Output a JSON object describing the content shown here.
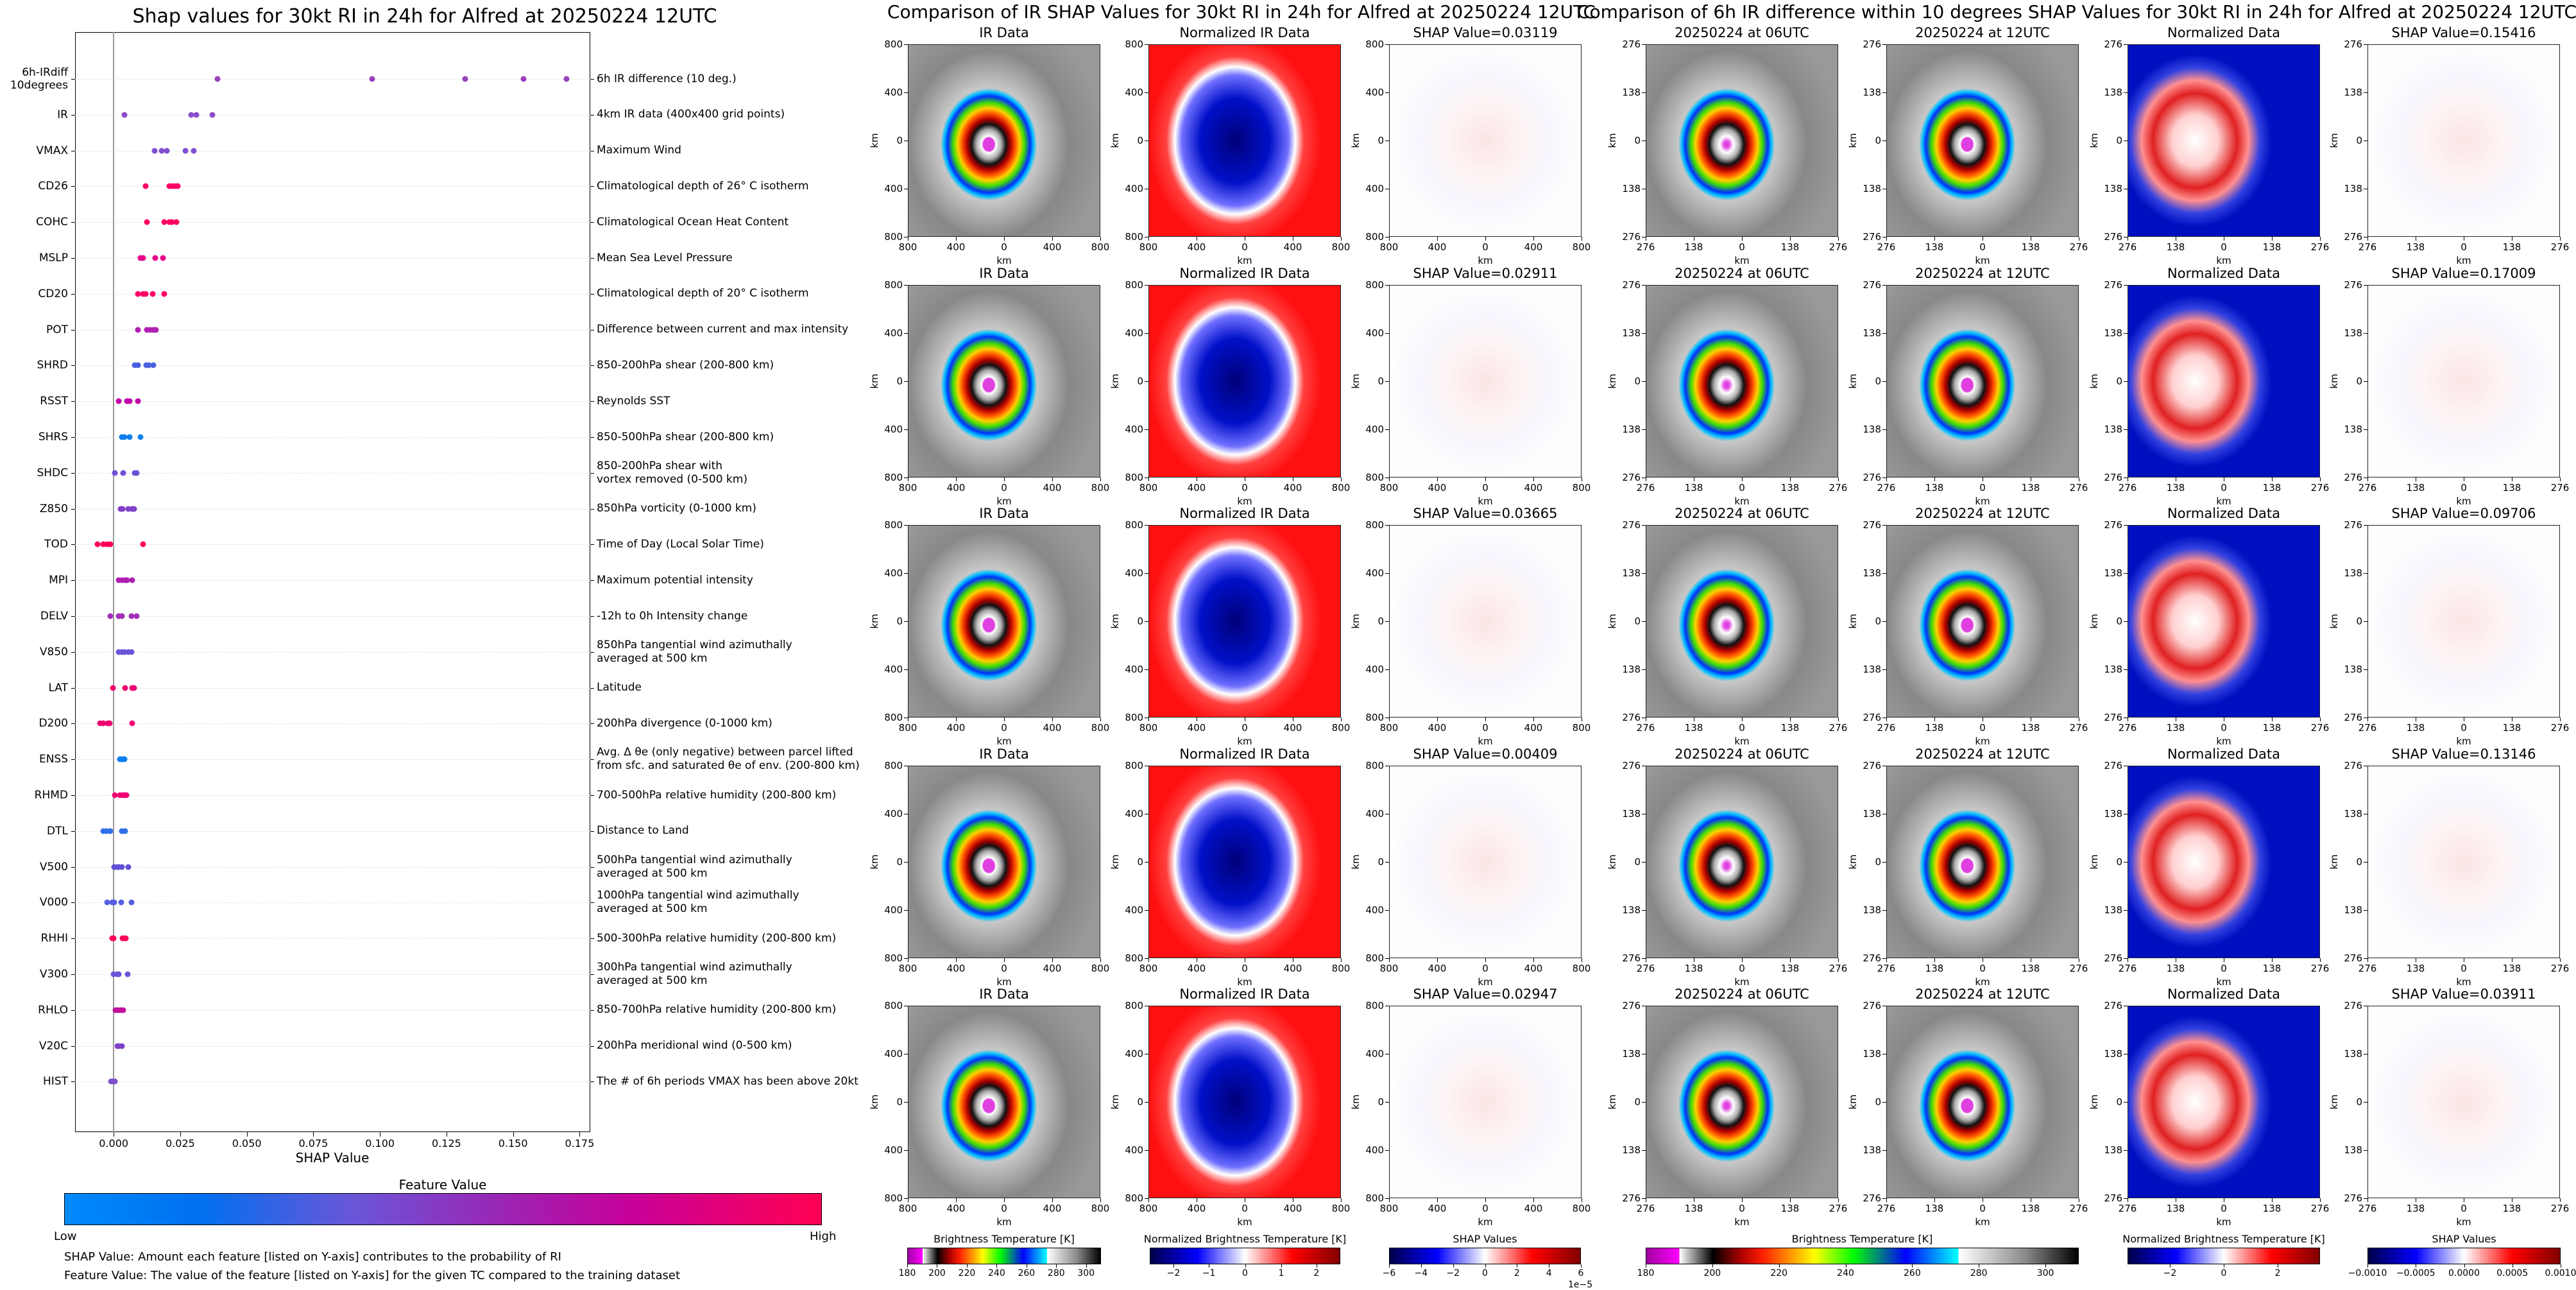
{
  "left_chart": {
    "title": "Shap values for 30kt RI in 24h for Alfred at 20250224 12UTC",
    "xlabel": "SHAP Value",
    "x_ticks": [
      "0.000",
      "0.025",
      "0.050",
      "0.075",
      "0.100",
      "0.125",
      "0.150",
      "0.175"
    ],
    "colorbar": {
      "title": "Feature Value",
      "low": "Low",
      "high": "High"
    },
    "note1": "SHAP Value: Amount each feature [listed on Y-axis] contributes to the probability of RI",
    "note2": "Feature Value: The value of the feature [listed on Y-axis] for the given TC compared to the training dataset"
  },
  "chart_data": {
    "type": "scatter",
    "title": "Shap values for 30kt RI in 24h for Alfred at 20250224 12UTC",
    "xlabel": "SHAP Value",
    "xlim": [
      -0.0145,
      0.179
    ],
    "zero_line": 0,
    "features": [
      {
        "code": "6h-IRdiff\n10degrees",
        "desc": "6h IR difference (10 deg.)",
        "color": "#9b3fc0",
        "values": [
          0.039,
          0.097,
          0.132,
          0.154,
          0.17
        ]
      },
      {
        "code": "IR",
        "desc": "4km IR data (400x400 grid points)",
        "color": "#8a4ec8",
        "values": [
          0.004,
          0.029,
          0.031,
          0.037
        ]
      },
      {
        "code": "VMAX",
        "desc": "Maximum Wind",
        "color": "#7f4fd0",
        "values": [
          0.0155,
          0.018,
          0.02,
          0.027,
          0.03
        ]
      },
      {
        "code": "CD26",
        "desc": "Climatological depth of 26° C isotherm",
        "color": "#ff0066",
        "values": [
          0.012,
          0.021,
          0.022,
          0.023,
          0.024
        ]
      },
      {
        "code": "COHC",
        "desc": "Climatological Ocean Heat Content",
        "color": "#ff0060",
        "values": [
          0.0126,
          0.019,
          0.021,
          0.022,
          0.0236
        ]
      },
      {
        "code": "MSLP",
        "desc": "Mean Sea Level Pressure",
        "color": "#e8008a",
        "values": [
          0.01,
          0.011,
          0.0157,
          0.0185
        ]
      },
      {
        "code": "CD20",
        "desc": "Climatological depth of 20° C isotherm",
        "color": "#ff0066",
        "values": [
          0.009,
          0.011,
          0.012,
          0.0147,
          0.019
        ]
      },
      {
        "code": "POT",
        "desc": "Difference between current and max intensity",
        "color": "#b020b0",
        "values": [
          0.009,
          0.0125,
          0.0138,
          0.0148,
          0.0158
        ]
      },
      {
        "code": "SHRD",
        "desc": "850-200hPa shear (200-800 km)",
        "color": "#4a60e0",
        "values": [
          0.008,
          0.009,
          0.0123,
          0.0133,
          0.015
        ]
      },
      {
        "code": "RSST",
        "desc": "Reynolds SST",
        "color": "#c000a8",
        "values": [
          0.002,
          0.005,
          0.006,
          0.009
        ]
      },
      {
        "code": "SHRS",
        "desc": "850-500hPa shear (200-800 km)",
        "color": "#1080f0",
        "values": [
          0.003,
          0.004,
          0.006,
          0.01
        ]
      },
      {
        "code": "SHDC",
        "desc": "850-200hPa shear with\nvortex removed (0-500 km)",
        "color": "#7050d8",
        "values": [
          0.0005,
          0.0036,
          0.0078,
          0.0087
        ]
      },
      {
        "code": "Z850",
        "desc": "850hPa vorticity (0-1000 km)",
        "color": "#8040c8",
        "values": [
          0.0026,
          0.0033,
          0.0056,
          0.0069,
          0.0077
        ]
      },
      {
        "code": "TOD",
        "desc": "Time of Day (Local Solar Time)",
        "color": "#ff0055",
        "values": [
          -0.006,
          -0.004,
          -0.0024,
          -0.0012,
          0.011
        ]
      },
      {
        "code": "MPI",
        "desc": "Maximum potential intensity",
        "color": "#b020b0",
        "values": [
          0.0019,
          0.003,
          0.0044,
          0.005,
          0.007
        ]
      },
      {
        "code": "DELV",
        "desc": "-12h to 0h Intensity change",
        "color": "#a030b8",
        "values": [
          -0.0013,
          0.002,
          0.003,
          0.0068,
          0.0087
        ]
      },
      {
        "code": "V850",
        "desc": "850hPa tangential wind azimuthally\naveraged at 500 km",
        "color": "#6a55d8",
        "values": [
          0.002,
          0.003,
          0.004,
          0.0055,
          0.0066
        ]
      },
      {
        "code": "LAT",
        "desc": "Latitude",
        "color": "#f00070",
        "values": [
          -0.0002,
          0.0044,
          0.0069,
          0.0077
        ]
      },
      {
        "code": "D200",
        "desc": "200hPa divergence (0-1000 km)",
        "color": "#f00070",
        "values": [
          -0.0052,
          -0.004,
          -0.0022,
          -0.0015,
          0.0069
        ]
      },
      {
        "code": "ENSS",
        "desc": "Avg. Δ θe (only negative) between parcel lifted\nfrom sfc. and saturated θe of env. (200-800 km)",
        "color": "#0a7ef0",
        "values": [
          0.0023,
          0.003,
          0.0037,
          0.0041
        ]
      },
      {
        "code": "RHMD",
        "desc": "700-500hPa relative humidity (200-800 km)",
        "color": "#f00070",
        "values": [
          0.0005,
          0.0023,
          0.0033,
          0.004,
          0.0048
        ]
      },
      {
        "code": "DTL",
        "desc": "Distance to Land",
        "color": "#3070e8",
        "values": [
          -0.004,
          -0.0028,
          -0.0013,
          0.003,
          0.0044
        ]
      },
      {
        "code": "V500",
        "desc": "500hPa tangential wind azimuthally\naveraged at 500 km",
        "color": "#6050d8",
        "values": [
          0.0003,
          0.0013,
          0.002,
          0.003,
          0.0056
        ]
      },
      {
        "code": "V000",
        "desc": "1000hPa tangential wind azimuthally\naveraged at 500 km",
        "color": "#5560e0",
        "values": [
          -0.0024,
          -0.0006,
          0.0003,
          0.0028,
          0.0068
        ]
      },
      {
        "code": "RHHI",
        "desc": "500-300hPa relative humidity (200-800 km)",
        "color": "#ff0055",
        "values": [
          -0.0006,
          0.0,
          0.0033,
          0.004,
          0.0046
        ]
      },
      {
        "code": "V300",
        "desc": "300hPa tangential wind azimuthally\naveraged at 500 km",
        "color": "#6a55d8",
        "values": [
          0.0,
          0.0014,
          0.0018,
          0.0052
        ]
      },
      {
        "code": "RHLO",
        "desc": "850-700hPa relative humidity (200-800 km)",
        "color": "#c0109c",
        "values": [
          0.0007,
          0.0017,
          0.0027,
          0.0035
        ]
      },
      {
        "code": "V20C",
        "desc": "200hPa meridional wind (0-500 km)",
        "color": "#8040c8",
        "values": [
          0.0013,
          0.002,
          0.003
        ]
      },
      {
        "code": "HIST",
        "desc": "The # of 6h periods VMAX has been above 20kt",
        "color": "#8050cc",
        "values": [
          -0.001,
          -0.0002,
          0.0005
        ]
      }
    ]
  },
  "ir_group": {
    "title": "Comparison of IR SHAP Values for 30kt RI in 24h for Alfred at 20250224 12UTC",
    "panel_titles": [
      "IR Data",
      "Normalized IR Data",
      "SHAP Value="
    ],
    "shap_values": [
      "0.03119",
      "0.02911",
      "0.03665",
      "0.00409",
      "0.02947"
    ],
    "ticks": [
      "800",
      "400",
      "0",
      "400",
      "800"
    ],
    "axis_label": "km",
    "colorbars": [
      {
        "title": "Brightness Temperature [K]",
        "ticks": [
          "180",
          "200",
          "220",
          "240",
          "260",
          "280",
          "300"
        ]
      },
      {
        "title": "Normalized Brightness Temperature [K]",
        "ticks": [
          "−2",
          "−1",
          "0",
          "1",
          "2"
        ]
      },
      {
        "title": "SHAP Values",
        "ticks": [
          "−6",
          "−4",
          "−2",
          "0",
          "2",
          "4",
          "6"
        ],
        "offset": "1e−5"
      }
    ]
  },
  "irdiff_group": {
    "title": "Comparison of 6h IR difference within 10 degrees SHAP Values for 30kt RI in 24h for Alfred at 20250224 12UTC",
    "panel_titles": [
      "20250224 at 06UTC",
      "20250224 at 12UTC",
      "Normalized Data",
      "SHAP Value="
    ],
    "shap_values": [
      "0.15416",
      "0.17009",
      "0.09706",
      "0.13146",
      "0.03911"
    ],
    "ticks": [
      "276",
      "138",
      "0",
      "138",
      "276"
    ],
    "axis_label": "km",
    "colorbars": [
      {
        "title": "Brightness Temperature [K]",
        "ticks": [
          "180",
          "200",
          "220",
          "240",
          "260",
          "280",
          "300"
        ]
      },
      {
        "title": "Normalized Brightness Temperature [K]",
        "ticks": [
          "−2",
          "0",
          "2"
        ]
      },
      {
        "title": "SHAP Values",
        "ticks": [
          "−0.0010",
          "−0.0005",
          "0.0000",
          "0.0005",
          "0.0010"
        ]
      }
    ]
  },
  "colors": {
    "feature_low": "#008afb",
    "feature_high": "#ff0052"
  }
}
